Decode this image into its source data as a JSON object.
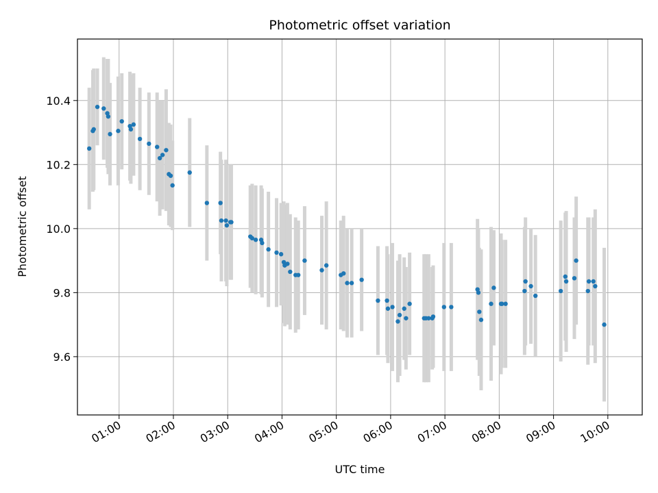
{
  "chart_data": {
    "type": "scatter",
    "title": "Photometric offset variation",
    "xlabel": "UTC time",
    "ylabel": "Photometric offset",
    "x_tick_labels": [
      "01:00",
      "02:00",
      "03:00",
      "04:00",
      "05:00",
      "06:00",
      "07:00",
      "08:00",
      "09:00",
      "10:00"
    ],
    "y_tick_labels": [
      "9.6",
      "9.8",
      "10.0",
      "10.2",
      "10.4"
    ],
    "xlim": [
      "00:14",
      "10:38"
    ],
    "ylim": [
      9.418,
      10.592
    ],
    "grid": true,
    "colors": {
      "marker": "#1f77b4",
      "errorbar": "#d3d3d3",
      "grid": "#b0b0b0"
    },
    "series": [
      {
        "points": [
          {
            "x": "00:27",
            "y": 10.25,
            "err": 0.19
          },
          {
            "x": "00:31",
            "y": 10.305,
            "err": 0.19
          },
          {
            "x": "00:32",
            "y": 10.31,
            "err": 0.19
          },
          {
            "x": "00:36",
            "y": 10.38,
            "err": 0.12
          },
          {
            "x": "00:43",
            "y": 10.375,
            "err": 0.16
          },
          {
            "x": "00:47",
            "y": 10.36,
            "err": 0.17
          },
          {
            "x": "00:48",
            "y": 10.35,
            "err": 0.18
          },
          {
            "x": "00:50",
            "y": 10.295,
            "err": 0.16
          },
          {
            "x": "00:59",
            "y": 10.305,
            "err": 0.17
          },
          {
            "x": "01:03",
            "y": 10.335,
            "err": 0.15
          },
          {
            "x": "01:12",
            "y": 10.32,
            "err": 0.17
          },
          {
            "x": "01:13",
            "y": 10.31,
            "err": 0.17
          },
          {
            "x": "01:16",
            "y": 10.325,
            "err": 0.16
          },
          {
            "x": "01:23",
            "y": 10.28,
            "err": 0.16
          },
          {
            "x": "01:33",
            "y": 10.265,
            "err": 0.16
          },
          {
            "x": "01:42",
            "y": 10.255,
            "err": 0.17
          },
          {
            "x": "01:45",
            "y": 10.22,
            "err": 0.18
          },
          {
            "x": "01:48",
            "y": 10.23,
            "err": 0.17
          },
          {
            "x": "01:52",
            "y": 10.245,
            "err": 0.19
          },
          {
            "x": "01:55",
            "y": 10.17,
            "err": 0.16
          },
          {
            "x": "01:57",
            "y": 10.165,
            "err": 0.16
          },
          {
            "x": "01:59",
            "y": 10.135,
            "err": 0.14
          },
          {
            "x": "02:18",
            "y": 10.175,
            "err": 0.17
          },
          {
            "x": "02:37",
            "y": 10.08,
            "err": 0.18
          },
          {
            "x": "02:52",
            "y": 10.08,
            "err": 0.16
          },
          {
            "x": "02:53",
            "y": 10.025,
            "err": 0.19
          },
          {
            "x": "02:58",
            "y": 10.025,
            "err": 0.19
          },
          {
            "x": "02:59",
            "y": 10.01,
            "err": 0.19
          },
          {
            "x": "03:03",
            "y": 10.02,
            "err": 0.18
          },
          {
            "x": "03:04",
            "y": 10.02,
            "err": 0.18
          },
          {
            "x": "03:25",
            "y": 9.975,
            "err": 0.16
          },
          {
            "x": "03:27",
            "y": 9.97,
            "err": 0.17
          },
          {
            "x": "03:31",
            "y": 9.965,
            "err": 0.17
          },
          {
            "x": "03:37",
            "y": 9.965,
            "err": 0.17
          },
          {
            "x": "03:38",
            "y": 9.955,
            "err": 0.17
          },
          {
            "x": "03:45",
            "y": 9.935,
            "err": 0.18
          },
          {
            "x": "03:54",
            "y": 9.925,
            "err": 0.17
          },
          {
            "x": "03:59",
            "y": 9.92,
            "err": 0.16
          },
          {
            "x": "04:02",
            "y": 9.895,
            "err": 0.19
          },
          {
            "x": "04:03",
            "y": 9.885,
            "err": 0.19
          },
          {
            "x": "04:06",
            "y": 9.89,
            "err": 0.19
          },
          {
            "x": "04:09",
            "y": 9.865,
            "err": 0.18
          },
          {
            "x": "04:15",
            "y": 9.855,
            "err": 0.18
          },
          {
            "x": "04:18",
            "y": 9.855,
            "err": 0.17
          },
          {
            "x": "04:25",
            "y": 9.9,
            "err": 0.17
          },
          {
            "x": "04:44",
            "y": 9.87,
            "err": 0.17
          },
          {
            "x": "04:49",
            "y": 9.885,
            "err": 0.2
          },
          {
            "x": "05:05",
            "y": 9.855,
            "err": 0.17
          },
          {
            "x": "05:08",
            "y": 9.86,
            "err": 0.18
          },
          {
            "x": "05:12",
            "y": 9.83,
            "err": 0.17
          },
          {
            "x": "05:17",
            "y": 9.83,
            "err": 0.17
          },
          {
            "x": "05:28",
            "y": 9.84,
            "err": 0.16
          },
          {
            "x": "05:46",
            "y": 9.775,
            "err": 0.17
          },
          {
            "x": "05:56",
            "y": 9.775,
            "err": 0.17
          },
          {
            "x": "05:57",
            "y": 9.75,
            "err": 0.17
          },
          {
            "x": "06:02",
            "y": 9.755,
            "err": 0.2
          },
          {
            "x": "06:08",
            "y": 9.71,
            "err": 0.19
          },
          {
            "x": "06:10",
            "y": 9.73,
            "err": 0.19
          },
          {
            "x": "06:15",
            "y": 9.75,
            "err": 0.16
          },
          {
            "x": "06:17",
            "y": 9.72,
            "err": 0.16
          },
          {
            "x": "06:21",
            "y": 9.765,
            "err": 0.16
          },
          {
            "x": "06:37",
            "y": 9.72,
            "err": 0.2
          },
          {
            "x": "06:39",
            "y": 9.72,
            "err": 0.2
          },
          {
            "x": "06:42",
            "y": 9.72,
            "err": 0.2
          },
          {
            "x": "06:46",
            "y": 9.72,
            "err": 0.16
          },
          {
            "x": "06:47",
            "y": 9.725,
            "err": 0.16
          },
          {
            "x": "06:59",
            "y": 9.755,
            "err": 0.2
          },
          {
            "x": "07:07",
            "y": 9.755,
            "err": 0.2
          },
          {
            "x": "07:36",
            "y": 9.81,
            "err": 0.22
          },
          {
            "x": "07:37",
            "y": 9.8,
            "err": 0.2
          },
          {
            "x": "07:38",
            "y": 9.74,
            "err": 0.2
          },
          {
            "x": "07:40",
            "y": 9.715,
            "err": 0.22
          },
          {
            "x": "07:51",
            "y": 9.765,
            "err": 0.24
          },
          {
            "x": "07:54",
            "y": 9.815,
            "err": 0.18
          },
          {
            "x": "08:02",
            "y": 9.765,
            "err": 0.22
          },
          {
            "x": "08:03",
            "y": 9.765,
            "err": 0.2
          },
          {
            "x": "08:07",
            "y": 9.765,
            "err": 0.2
          },
          {
            "x": "08:28",
            "y": 9.805,
            "err": 0.2
          },
          {
            "x": "08:29",
            "y": 9.835,
            "err": 0.2
          },
          {
            "x": "08:35",
            "y": 9.82,
            "err": 0.18
          },
          {
            "x": "08:40",
            "y": 9.79,
            "err": 0.19
          },
          {
            "x": "09:08",
            "y": 9.805,
            "err": 0.22
          },
          {
            "x": "09:13",
            "y": 9.85,
            "err": 0.2
          },
          {
            "x": "09:14",
            "y": 9.835,
            "err": 0.22
          },
          {
            "x": "09:23",
            "y": 9.845,
            "err": 0.19
          },
          {
            "x": "09:25",
            "y": 9.9,
            "err": 0.2
          },
          {
            "x": "09:38",
            "y": 9.805,
            "err": 0.23
          },
          {
            "x": "09:39",
            "y": 9.835,
            "err": 0.2
          },
          {
            "x": "09:44",
            "y": 9.835,
            "err": 0.2
          },
          {
            "x": "09:46",
            "y": 9.82,
            "err": 0.24
          },
          {
            "x": "09:56",
            "y": 9.7,
            "err": 0.24
          }
        ]
      }
    ]
  }
}
